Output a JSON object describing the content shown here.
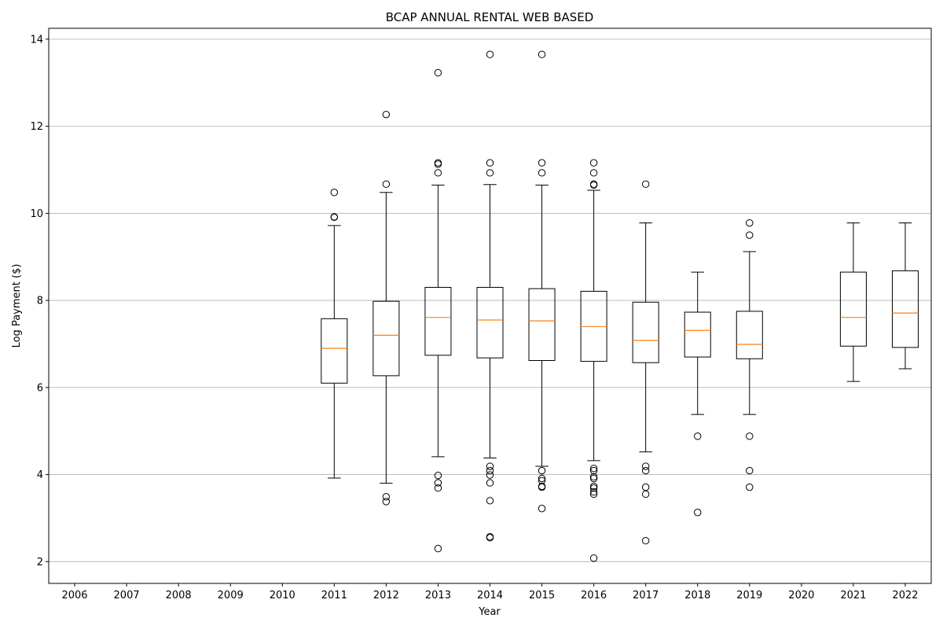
{
  "chart_data": {
    "type": "boxplot",
    "title": "BCAP ANNUAL RENTAL WEB BASED",
    "xlabel": "Year",
    "ylabel": "Log Payment ($)",
    "ylim": [
      1.5,
      14.25
    ],
    "yticks": [
      2,
      4,
      6,
      8,
      10,
      12,
      14
    ],
    "grid": "y-major",
    "categories": [
      "2006",
      "2007",
      "2008",
      "2009",
      "2010",
      "2011",
      "2012",
      "2013",
      "2014",
      "2015",
      "2016",
      "2017",
      "2018",
      "2019",
      "2020",
      "2021",
      "2022"
    ],
    "boxes": [
      {
        "year": "2006",
        "empty": true
      },
      {
        "year": "2007",
        "empty": true
      },
      {
        "year": "2008",
        "empty": true
      },
      {
        "year": "2009",
        "empty": true
      },
      {
        "year": "2010",
        "empty": true
      },
      {
        "year": "2011",
        "whisker_low": 3.92,
        "q1": 6.1,
        "median": 6.9,
        "q3": 7.58,
        "whisker_high": 9.72,
        "outliers": [
          10.48,
          9.92,
          9.91
        ]
      },
      {
        "year": "2012",
        "whisker_low": 3.8,
        "q1": 6.27,
        "median": 7.2,
        "q3": 7.98,
        "whisker_high": 10.48,
        "outliers": [
          12.27,
          10.67,
          3.49,
          3.38
        ]
      },
      {
        "year": "2013",
        "whisker_low": 4.41,
        "q1": 6.74,
        "median": 7.61,
        "q3": 8.3,
        "whisker_high": 10.65,
        "outliers": [
          13.23,
          11.16,
          11.13,
          10.93,
          3.98,
          3.81,
          3.69,
          2.3
        ]
      },
      {
        "year": "2014",
        "whisker_low": 4.38,
        "q1": 6.68,
        "median": 7.55,
        "q3": 8.3,
        "whisker_high": 10.66,
        "outliers": [
          13.65,
          11.16,
          10.93,
          4.19,
          4.09,
          3.99,
          3.81,
          3.4,
          2.57,
          2.55
        ]
      },
      {
        "year": "2015",
        "whisker_low": 4.19,
        "q1": 6.62,
        "median": 7.53,
        "q3": 8.27,
        "whisker_high": 10.65,
        "outliers": [
          13.65,
          11.16,
          10.93,
          4.09,
          3.91,
          3.86,
          3.73,
          3.71,
          3.22
        ]
      },
      {
        "year": "2016",
        "whisker_low": 4.32,
        "q1": 6.6,
        "median": 7.4,
        "q3": 8.21,
        "whisker_high": 10.53,
        "outliers": [
          11.16,
          10.93,
          10.67,
          10.65,
          4.14,
          4.09,
          3.95,
          3.91,
          3.73,
          3.69,
          3.6,
          3.55,
          2.08
        ]
      },
      {
        "year": "2017",
        "whisker_low": 4.52,
        "q1": 6.57,
        "median": 7.08,
        "q3": 7.96,
        "whisker_high": 9.78,
        "outliers": [
          10.67,
          4.19,
          4.09,
          3.71,
          3.55,
          2.48
        ]
      },
      {
        "year": "2018",
        "whisker_low": 5.38,
        "q1": 6.7,
        "median": 7.31,
        "q3": 7.73,
        "whisker_high": 8.65,
        "outliers": [
          4.88,
          3.13
        ]
      },
      {
        "year": "2019",
        "whisker_low": 5.38,
        "q1": 6.66,
        "median": 6.99,
        "q3": 7.75,
        "whisker_high": 9.12,
        "outliers": [
          9.78,
          9.5,
          4.88,
          4.09,
          3.71
        ]
      },
      {
        "year": "2020",
        "empty": true
      },
      {
        "year": "2021",
        "whisker_low": 6.14,
        "q1": 6.95,
        "median": 7.61,
        "q3": 8.65,
        "whisker_high": 9.78,
        "outliers": []
      },
      {
        "year": "2022",
        "whisker_low": 6.43,
        "q1": 6.92,
        "median": 7.71,
        "q3": 8.68,
        "whisker_high": 9.78,
        "outliers": []
      }
    ],
    "colors": {
      "box": "#000000",
      "median": "#ff7f0e",
      "grid": "#b0b0b0",
      "outlier_edge": "#000000"
    }
  }
}
